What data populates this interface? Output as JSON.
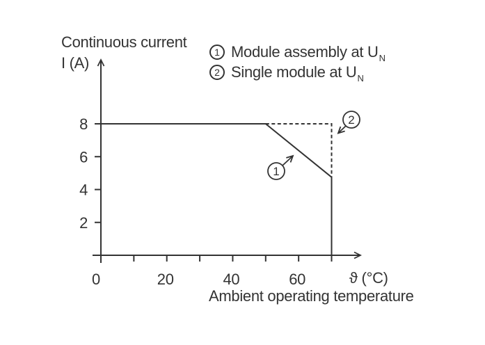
{
  "page": {
    "background": "#ffffff",
    "ink_color": "#333333"
  },
  "chart_data": {
    "type": "line",
    "title_line1": "Continuous current",
    "title_line2": "I (A)",
    "xlabel": "Ambient operating temperature",
    "x_unit_label": "ϑ (°C)",
    "xlim": [
      0,
      78
    ],
    "ylim": [
      0,
      12
    ],
    "grid": false,
    "legend_position": "top-right",
    "xticks": [
      0,
      10,
      20,
      30,
      40,
      50,
      60,
      70
    ],
    "xtick_labels": [
      {
        "value": 0,
        "label": "0"
      },
      {
        "value": 20,
        "label": "20"
      },
      {
        "value": 40,
        "label": "40"
      },
      {
        "value": 60,
        "label": "60"
      }
    ],
    "yticks": [
      {
        "value": 2,
        "label": "2"
      },
      {
        "value": 4,
        "label": "4"
      },
      {
        "value": 6,
        "label": "6"
      },
      {
        "value": 8,
        "label": "8"
      }
    ],
    "series": [
      {
        "id": "1",
        "name": "Module assembly at UN",
        "line_style": "solid",
        "points": [
          [
            0,
            8
          ],
          [
            50,
            8
          ],
          [
            70,
            4.75
          ],
          [
            70,
            0
          ]
        ]
      },
      {
        "id": "2",
        "name": "Single module at UN",
        "line_style": "dashed",
        "points": [
          [
            50,
            8
          ],
          [
            70,
            8
          ],
          [
            70,
            4.75
          ]
        ]
      }
    ],
    "legend": {
      "items": [
        {
          "num": "1",
          "label": "Module assembly at U",
          "subscript": "N"
        },
        {
          "num": "2",
          "label": "Single module at U",
          "subscript": "N"
        }
      ]
    },
    "callouts": [
      {
        "num": "1"
      },
      {
        "num": "2"
      }
    ]
  }
}
